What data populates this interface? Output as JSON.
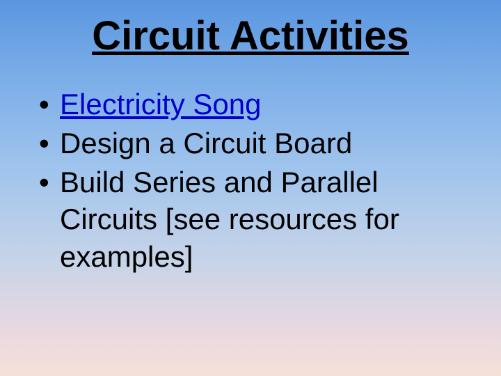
{
  "title": {
    "text": "Circuit Activities",
    "fontsize": 58,
    "color": "#000000"
  },
  "bullets": {
    "fontsize": 42,
    "text_color": "#000000",
    "link_color": "#0000cc",
    "items": [
      {
        "text": "Electricity Song",
        "is_link": true
      },
      {
        "text": "Design a Circuit Board",
        "is_link": false
      },
      {
        "text": "Build Series and Parallel Circuits [see resources for examples]",
        "is_link": false
      }
    ]
  },
  "background": {
    "gradient_top": "#5a96e0",
    "gradient_bottom": "#f5e0d8"
  }
}
